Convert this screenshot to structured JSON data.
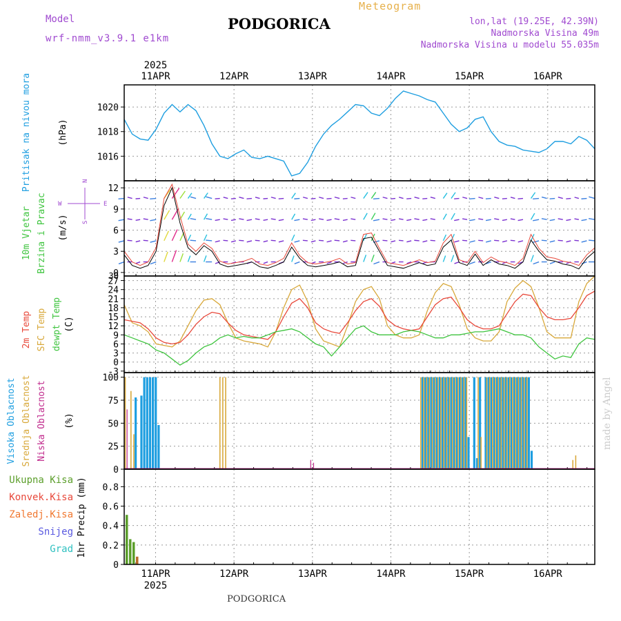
{
  "header": {
    "title": "PODGORICA",
    "meteogram_label": "Meteogram",
    "model_label": "Model",
    "model_id": "wrf-nmm_v3.9.1 e1km",
    "lonlat": "lon,lat (19.25E, 42.39N)",
    "elevation": "Nadmorska Visina 49m",
    "model_elevation": "Nadmorska Visina u modelu 55.035m"
  },
  "footer": {
    "location": "PODGORICA",
    "watermark": "made by Angel"
  },
  "colors": {
    "pressure": "#1e9ee0",
    "temp2m": "#e8483a",
    "sfc_temp": "#d8a83a",
    "dewpoint": "#3ec43e",
    "high_cloud": "#1e9ee0",
    "mid_cloud": "#d8a83a",
    "low_cloud": "#c02a8c",
    "total_precip": "#5b9e2a",
    "snow": "#5858e0",
    "grad": "#2ec0c0",
    "zaledj": "#f07830",
    "konvek": "#e8483a"
  },
  "chart_data": [
    {
      "type": "line",
      "panel": "pressure",
      "title": "",
      "ylabel": "Pritisak na nivou mora",
      "yunit": "(hPa)",
      "ylim": [
        1014.0,
        1021.8
      ],
      "yticks": [
        1016,
        1018,
        1020
      ],
      "x_start_day": 10.6,
      "x_range": [
        10.6,
        16.6
      ],
      "date_labels": [
        "11APR",
        "12APR",
        "13APR",
        "14APR",
        "15APR",
        "16APR"
      ],
      "date_positions": [
        11,
        12,
        13,
        14,
        15,
        16
      ],
      "year_label": "2025",
      "grid": true,
      "series": [
        {
          "name": "",
          "values": [
            1019.0,
            1017.8,
            1017.4,
            1017.3,
            1018.2,
            1019.5,
            1020.2,
            1019.6,
            1020.2,
            1019.7,
            1018.5,
            1017.0,
            1016.0,
            1015.8,
            1016.2,
            1016.5,
            1015.9,
            1015.8,
            1016.0,
            1015.8,
            1015.6,
            1014.4,
            1014.6,
            1015.5,
            1016.8,
            1017.8,
            1018.5,
            1019.0,
            1019.6,
            1020.2,
            1020.1,
            1019.5,
            1019.3,
            1019.9,
            1020.7,
            1021.3,
            1021.1,
            1020.9,
            1020.6,
            1020.4,
            1019.5,
            1018.6,
            1018.0,
            1018.3,
            1019.0,
            1019.2,
            1018.0,
            1017.2,
            1016.9,
            1016.8,
            1016.5,
            1016.4,
            1016.3,
            1016.6,
            1017.2,
            1017.2,
            1017.0,
            1017.6,
            1017.3,
            1016.6
          ]
        }
      ]
    },
    {
      "type": "line",
      "panel": "wind",
      "title": "",
      "ylabel": "10m Vjetar Brzina i Pravac",
      "yunit": "(m/s)",
      "ylim": [
        -0.5,
        13.0
      ],
      "yticks": [
        0,
        3,
        6,
        9,
        12
      ],
      "extra_tick": "30",
      "compass": {
        "n": "N",
        "s": "S",
        "e": "E",
        "w": "W"
      },
      "series": [
        {
          "name": "",
          "values": [
            2.5,
            1.0,
            0.6,
            1.0,
            3.0,
            9.5,
            12.0,
            7.0,
            3.5,
            2.5,
            3.8,
            3.0,
            1.2,
            0.8,
            1.0,
            1.2,
            1.5,
            0.8,
            0.6,
            1.0,
            1.5,
            3.6,
            2.0,
            1.0,
            0.8,
            1.0,
            1.2,
            1.5,
            0.8,
            1.0,
            4.8,
            5.0,
            3.0,
            1.0,
            0.8,
            0.6,
            1.0,
            1.4,
            1.0,
            1.2,
            3.6,
            4.6,
            1.4,
            1.0,
            2.6,
            1.0,
            1.8,
            1.2,
            1.0,
            0.6,
            1.5,
            4.6,
            3.0,
            1.8,
            1.6,
            1.2,
            1.0,
            0.5,
            2.0,
            3.0
          ]
        },
        {
          "name": "",
          "values": [
            3.0,
            1.5,
            1.0,
            1.5,
            3.5,
            10.5,
            12.5,
            8.0,
            4.0,
            3.0,
            4.2,
            3.4,
            1.6,
            1.2,
            1.4,
            1.6,
            2.0,
            1.2,
            1.0,
            1.4,
            2.0,
            4.2,
            2.4,
            1.4,
            1.2,
            1.4,
            1.6,
            2.0,
            1.2,
            1.4,
            5.4,
            5.6,
            3.4,
            1.4,
            1.2,
            1.0,
            1.4,
            1.8,
            1.4,
            1.6,
            4.2,
            5.4,
            1.8,
            1.4,
            3.0,
            1.4,
            2.2,
            1.6,
            1.4,
            1.0,
            2.0,
            5.4,
            3.4,
            2.2,
            2.0,
            1.6,
            1.4,
            1.0,
            2.5,
            3.5
          ]
        }
      ]
    },
    {
      "type": "line",
      "panel": "temperature",
      "title": "",
      "ylabel_lines": [
        "2m Temp",
        "SFC Temp",
        "dewpt Temp"
      ],
      "yunit": "(C)",
      "ylim": [
        -3.5,
        28.5
      ],
      "yticks": [
        -3,
        0,
        3,
        6,
        9,
        12,
        15,
        18,
        21,
        24,
        27,
        30
      ],
      "series": [
        {
          "name": "2m Temp",
          "values": [
            14.0,
            13.5,
            13.0,
            11.0,
            8.0,
            6.5,
            6.0,
            6.5,
            9.0,
            12.5,
            15.0,
            16.5,
            16.0,
            13.0,
            10.5,
            9.0,
            8.5,
            8.0,
            7.5,
            10.0,
            15.0,
            19.5,
            21.0,
            18.0,
            13.0,
            11.0,
            10.0,
            9.5,
            13.0,
            17.0,
            20.0,
            21.0,
            18.5,
            14.0,
            12.0,
            11.0,
            10.5,
            11.0,
            15.0,
            19.0,
            21.0,
            21.5,
            18.0,
            14.0,
            12.0,
            11.0,
            11.0,
            12.0,
            16.0,
            20.0,
            22.5,
            22.0,
            18.0,
            15.0,
            14.0,
            14.0,
            14.5,
            18.0,
            22.0,
            23.5
          ]
        },
        {
          "name": "SFC Temp",
          "values": [
            19.0,
            13.0,
            12.0,
            10.0,
            6.0,
            5.5,
            5.0,
            7.0,
            12.0,
            17.0,
            20.5,
            21.0,
            19.0,
            13.0,
            8.0,
            7.0,
            6.5,
            6.0,
            5.0,
            10.0,
            18.0,
            24.0,
            25.5,
            20.0,
            11.0,
            7.0,
            6.0,
            5.0,
            12.0,
            20.0,
            24.0,
            25.0,
            21.0,
            12.0,
            9.0,
            8.0,
            8.0,
            9.0,
            17.0,
            23.0,
            26.0,
            25.0,
            19.0,
            11.0,
            8.0,
            7.0,
            7.0,
            10.0,
            20.0,
            24.5,
            27.0,
            25.0,
            18.0,
            10.0,
            8.0,
            8.0,
            8.0,
            20.0,
            26.0,
            28.5
          ]
        },
        {
          "name": "dewpt Temp",
          "values": [
            9.0,
            8.0,
            7.0,
            6.0,
            4.0,
            3.0,
            1.0,
            -1.0,
            0.5,
            3.0,
            5.0,
            6.0,
            8.0,
            9.0,
            8.0,
            8.5,
            8.0,
            8.0,
            9.0,
            10.0,
            10.5,
            11.0,
            10.0,
            8.0,
            6.0,
            5.0,
            2.0,
            5.0,
            8.0,
            11.0,
            12.0,
            10.0,
            9.0,
            9.0,
            9.0,
            10.0,
            10.5,
            10.0,
            9.0,
            8.0,
            8.0,
            9.0,
            9.0,
            9.5,
            10.0,
            10.0,
            10.5,
            11.0,
            10.0,
            9.0,
            9.0,
            8.0,
            5.0,
            3.0,
            1.0,
            2.0,
            1.5,
            6.0,
            8.0,
            7.5
          ]
        }
      ]
    },
    {
      "type": "bar",
      "panel": "clouds",
      "title": "",
      "ylabel_lines": [
        "Visoka Oblacnost",
        "Srednja Oblacnost",
        "Niska Oblacnost"
      ],
      "yunit": "(%)",
      "ylim": [
        0,
        105
      ],
      "yticks": [
        0,
        25,
        50,
        75,
        100
      ],
      "series": [
        {
          "name": "Visoka Oblacnost",
          "values": [
            0,
            0,
            0,
            0,
            78,
            0,
            80,
            100,
            100,
            100,
            100,
            100,
            48,
            0,
            0,
            0,
            0,
            0,
            0,
            0,
            0,
            0,
            0,
            0,
            0,
            0,
            0,
            0,
            0,
            0,
            0,
            0,
            0,
            0,
            0,
            0,
            0,
            0,
            0,
            0,
            0,
            0,
            0,
            0,
            0,
            0,
            0,
            0,
            0,
            0,
            0,
            0,
            0,
            0,
            0,
            0,
            0,
            0,
            0,
            0,
            0,
            0,
            0,
            0,
            0,
            0,
            0,
            0,
            0,
            0,
            0,
            0,
            0,
            0,
            0,
            0,
            0,
            0,
            0,
            0,
            0,
            0,
            0,
            0,
            0,
            0,
            0,
            0,
            0,
            0,
            0,
            0,
            0,
            0,
            0,
            0,
            0,
            0,
            0,
            0,
            0,
            0,
            0,
            0,
            100,
            100,
            100,
            100,
            100,
            100,
            100,
            100,
            100,
            100,
            100,
            100,
            100,
            100,
            100,
            100,
            35,
            0,
            100,
            12,
            100,
            0,
            100,
            100,
            100,
            100,
            100,
            100,
            100,
            100,
            100,
            100,
            100,
            100,
            100,
            100,
            100,
            100,
            20,
            0,
            0,
            0,
            0,
            0,
            0,
            0,
            0,
            0,
            0,
            0,
            0,
            0,
            0,
            0,
            0,
            0,
            0,
            0,
            0,
            0,
            0
          ]
        },
        {
          "name": "Srednja Oblacnost",
          "values": [
            100,
            0,
            85,
            38,
            0,
            0,
            0,
            0,
            0,
            0,
            0,
            0,
            0,
            0,
            0,
            0,
            0,
            0,
            0,
            0,
            0,
            0,
            0,
            0,
            0,
            0,
            0,
            0,
            0,
            0,
            0,
            0,
            0,
            100,
            100,
            100,
            0,
            0,
            0,
            0,
            0,
            0,
            0,
            0,
            0,
            0,
            0,
            0,
            0,
            0,
            0,
            0,
            0,
            0,
            0,
            0,
            0,
            0,
            0,
            0,
            0,
            0,
            0,
            0,
            0,
            0,
            0,
            0,
            0,
            0,
            0,
            0,
            0,
            0,
            0,
            0,
            0,
            0,
            0,
            0,
            0,
            0,
            0,
            0,
            0,
            0,
            0,
            0,
            0,
            0,
            0,
            0,
            0,
            0,
            0,
            0,
            0,
            0,
            0,
            0,
            0,
            0,
            0,
            100,
            100,
            100,
            100,
            100,
            100,
            100,
            100,
            100,
            100,
            100,
            100,
            100,
            100,
            100,
            100,
            100,
            0,
            0,
            0,
            100,
            35,
            0,
            100,
            100,
            100,
            100,
            100,
            100,
            100,
            100,
            100,
            100,
            100,
            100,
            100,
            100,
            100,
            0,
            0,
            0,
            0,
            0,
            0,
            0,
            0,
            0,
            0,
            0,
            0,
            0,
            0,
            0,
            10,
            15,
            0,
            0,
            0,
            0,
            0,
            0,
            0
          ]
        },
        {
          "name": "Niska Oblacnost",
          "values": [
            0,
            65,
            0,
            0,
            0,
            0,
            0,
            0,
            0,
            0,
            0,
            0,
            0,
            0,
            0,
            0,
            0,
            0,
            0,
            0,
            0,
            0,
            0,
            0,
            0,
            0,
            0,
            0,
            0,
            0,
            0,
            0,
            0,
            0,
            0,
            0,
            0,
            0,
            0,
            0,
            0,
            0,
            0,
            0,
            0,
            0,
            0,
            0,
            0,
            0,
            0,
            0,
            0,
            0,
            0,
            0,
            0,
            0,
            0,
            0,
            0,
            0,
            0,
            0,
            0,
            10,
            7,
            0,
            0,
            0,
            0,
            0,
            0,
            0,
            0,
            0,
            0,
            0,
            0,
            0,
            0,
            0,
            0,
            0,
            0,
            0,
            0,
            0,
            0,
            0,
            0,
            0,
            0,
            0,
            0,
            0,
            0,
            0,
            0,
            0,
            0,
            0,
            0,
            0,
            0,
            0,
            0,
            0,
            0,
            0,
            0,
            0,
            0,
            0,
            0,
            0,
            0,
            0,
            0,
            0,
            0,
            0,
            0,
            0,
            0,
            0,
            0,
            0,
            0,
            0,
            0,
            0,
            0,
            0,
            0,
            0,
            0,
            0,
            0,
            0,
            0,
            0,
            0,
            0,
            0,
            0,
            0,
            0,
            0,
            0,
            0,
            0,
            0,
            0,
            0,
            0,
            0,
            0,
            0,
            0,
            0,
            0,
            0,
            0,
            0
          ]
        }
      ]
    },
    {
      "type": "bar",
      "panel": "precip",
      "title": "",
      "ylabel": "1hr Precip",
      "yunit": "(mm)",
      "ylim": [
        0,
        0.98
      ],
      "yticks": [
        0,
        0.2,
        0.4,
        0.6,
        0.8
      ],
      "legend": [
        "Ukupna Kisa",
        "Konvek.Kisa",
        "Zaledj.Kisa",
        "Snijeg",
        "Grad"
      ],
      "series": [
        {
          "name": "Ukupna Kisa",
          "values": [
            0.51,
            0.26,
            0.23,
            0.08
          ]
        }
      ]
    }
  ]
}
